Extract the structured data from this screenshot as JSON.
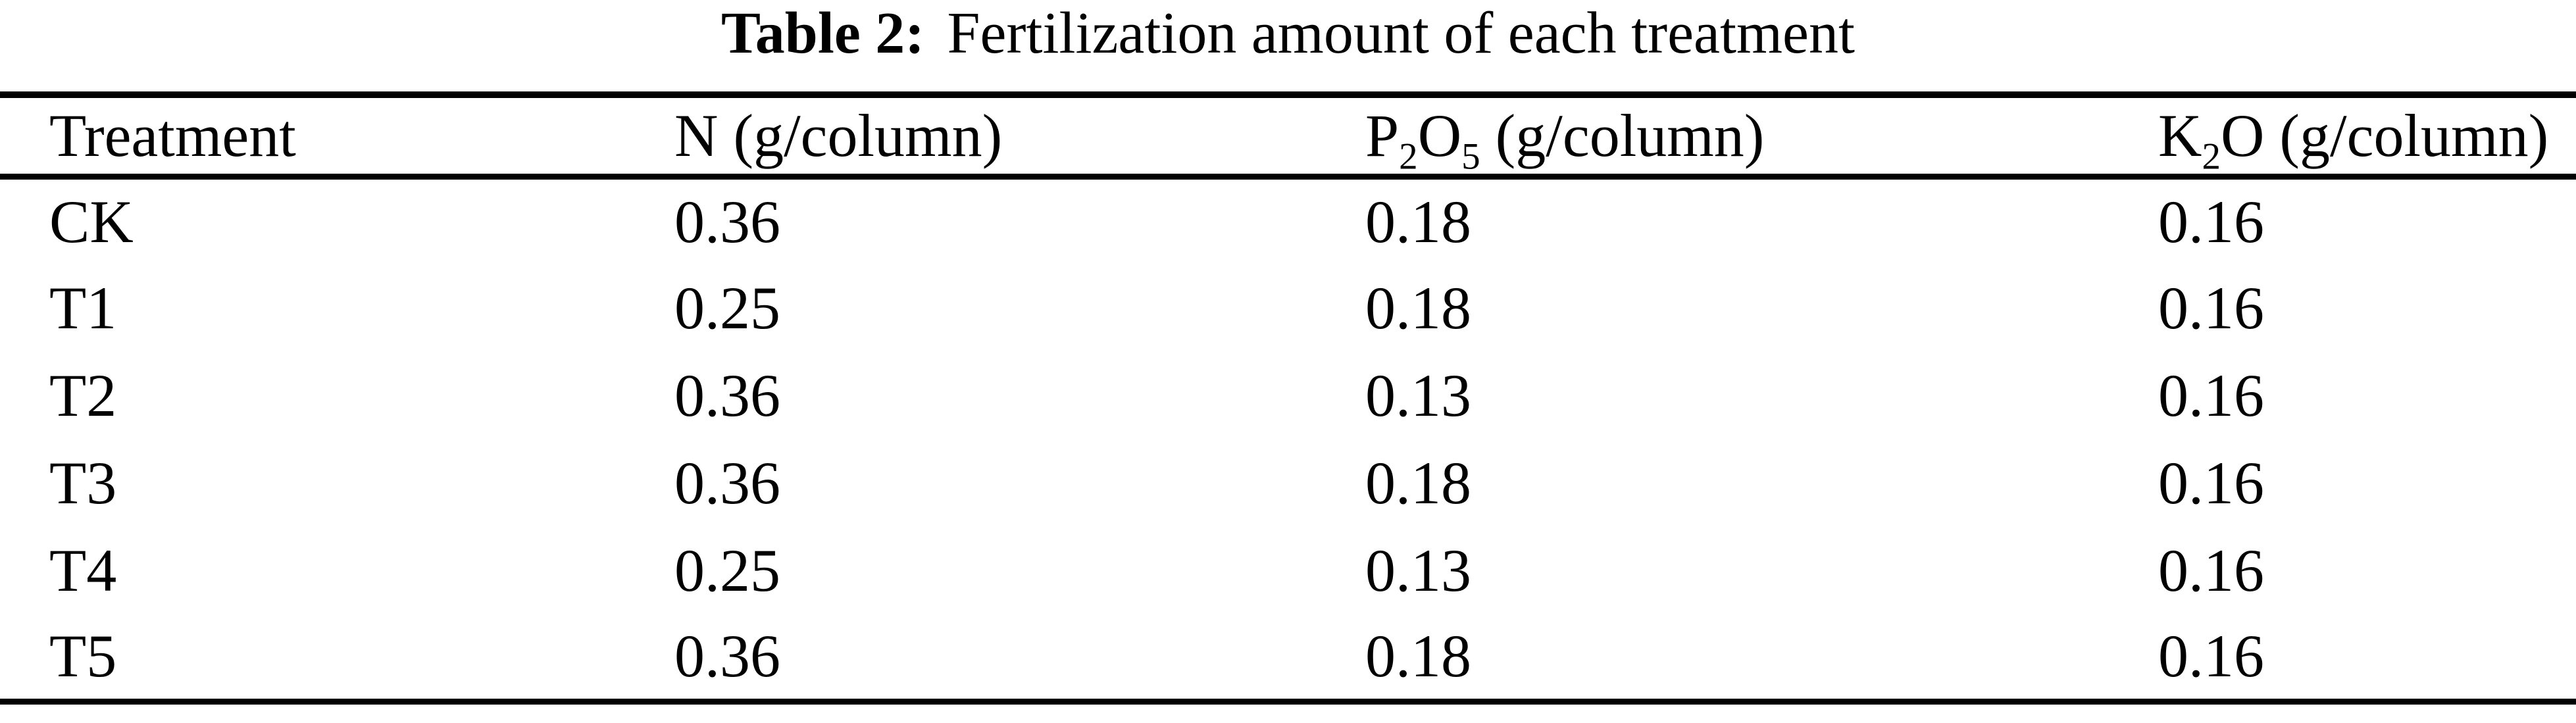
{
  "page": {
    "background_color": "#ffffff",
    "text_color": "#000000"
  },
  "title": {
    "label": "Table 2:",
    "text": "Fertilization amount of each treatment"
  },
  "table": {
    "columns": [
      {
        "label": "Treatment"
      },
      {
        "label": "N (g/column)"
      },
      {
        "pre": "P",
        "sub1": "2",
        "mid": "O",
        "sub2": "5",
        "post": " (g/column)"
      },
      {
        "pre": "K",
        "sub1": "2",
        "mid": "O",
        "post": " (g/column)"
      }
    ],
    "rows": [
      {
        "treatment": "CK",
        "n": "0.36",
        "p2o5": "0.18",
        "k2o": "0.16"
      },
      {
        "treatment": "T1",
        "n": "0.25",
        "p2o5": "0.18",
        "k2o": "0.16"
      },
      {
        "treatment": "T2",
        "n": "0.36",
        "p2o5": "0.13",
        "k2o": "0.16"
      },
      {
        "treatment": "T3",
        "n": "0.36",
        "p2o5": "0.18",
        "k2o": "0.16"
      },
      {
        "treatment": "T4",
        "n": "0.25",
        "p2o5": "0.13",
        "k2o": "0.16"
      },
      {
        "treatment": "T5",
        "n": "0.36",
        "p2o5": "0.18",
        "k2o": "0.16"
      }
    ]
  }
}
